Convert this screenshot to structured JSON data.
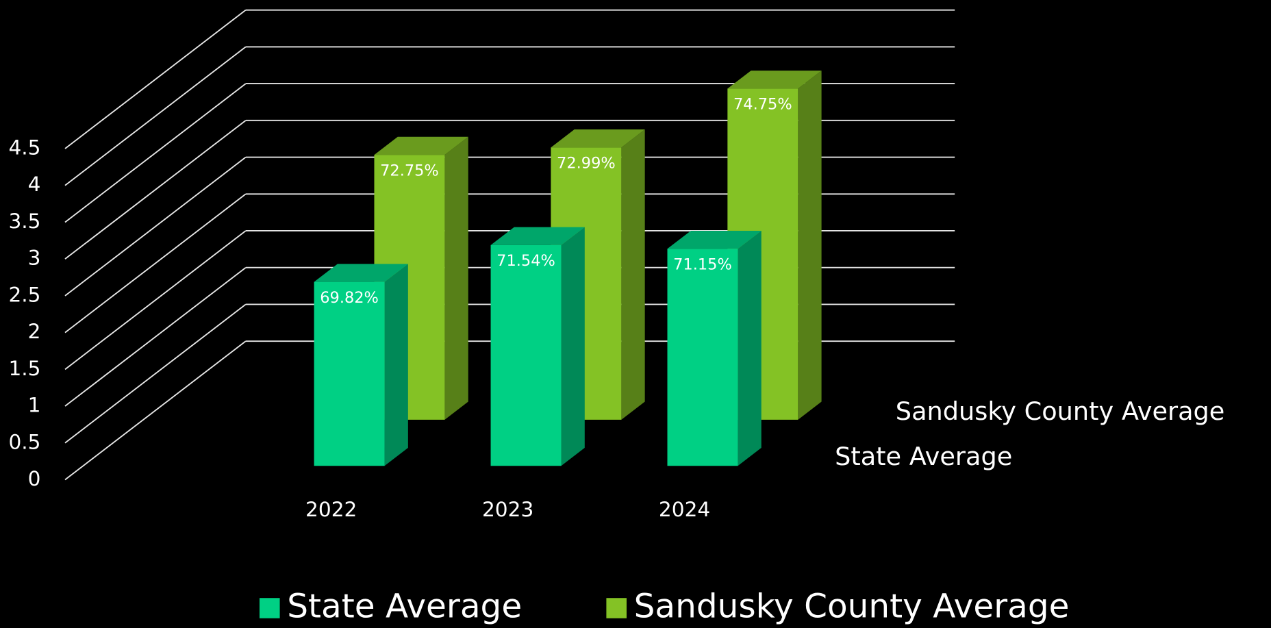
{
  "chart_data": {
    "type": "bar3d",
    "categories": [
      "2022",
      "2023",
      "2024"
    ],
    "series": [
      {
        "name": "State Average",
        "color": "#00d084",
        "values": [
          2.5,
          3.0,
          2.95
        ],
        "bar_labels": [
          "69.82%",
          "71.54%",
          "71.15%"
        ]
      },
      {
        "name": "Sandusky County Average",
        "color": "#84c225",
        "values": [
          3.6,
          3.7,
          4.5
        ],
        "bar_labels": [
          "72.75%",
          "72.99%",
          "74.75%"
        ]
      }
    ],
    "ylim": [
      0,
      4.5
    ],
    "yticks": [
      0,
      0.5,
      1,
      1.5,
      2,
      2.5,
      3,
      3.5,
      4,
      4.5
    ],
    "grid": true,
    "legend": "bottom"
  }
}
